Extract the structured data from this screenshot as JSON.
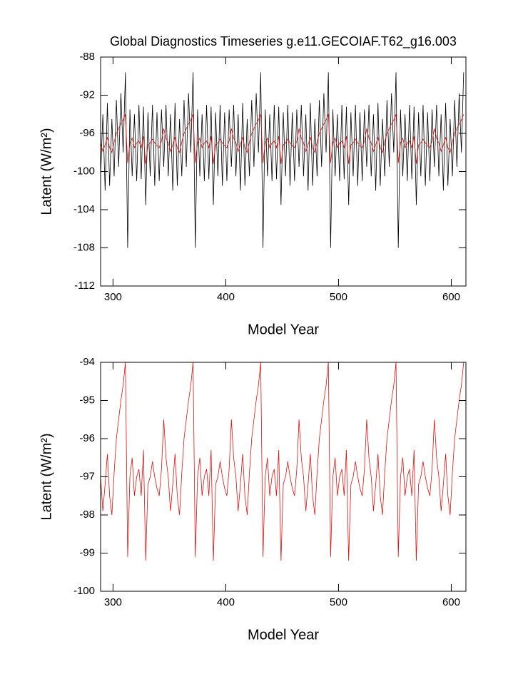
{
  "chart_data": [
    {
      "type": "line",
      "title": "Global Diagnostics Timeseries g.e11.GECOIAF.T62_g16.003",
      "xlabel": "Model Year",
      "ylabel": "Latent (W/m²)",
      "xlim": [
        289,
        613
      ],
      "xticks": [
        300,
        400,
        500,
        600
      ],
      "ylim": [
        -112,
        -88
      ],
      "yticks": [
        -112,
        -108,
        -104,
        -100,
        -96,
        -92,
        -88
      ],
      "x": [
        289,
        291,
        293,
        295,
        297,
        299,
        301,
        303,
        305,
        307,
        309,
        311,
        313,
        315,
        317,
        319,
        321,
        323,
        325,
        327,
        329,
        331,
        333,
        335,
        337,
        339,
        341,
        343,
        345,
        347,
        349,
        351,
        353,
        355,
        357,
        359,
        361,
        363,
        365,
        367,
        369,
        371,
        373,
        375,
        377,
        379,
        381,
        383,
        385,
        387,
        389,
        391,
        393,
        395,
        397,
        399,
        401,
        403,
        405,
        407,
        409,
        411,
        413,
        415,
        417,
        419,
        421,
        423,
        425,
        427,
        429,
        431,
        433,
        435,
        437,
        439,
        441,
        443,
        445,
        447,
        449,
        451,
        453,
        455,
        457,
        459,
        461,
        463,
        465,
        467,
        469,
        471,
        473,
        475,
        477,
        479,
        481,
        483,
        485,
        487,
        489,
        491,
        493,
        495,
        497,
        499,
        501,
        503,
        505,
        507,
        509,
        511,
        513,
        515,
        517,
        519,
        521,
        523,
        525,
        527,
        529,
        531,
        533,
        535,
        537,
        539,
        541,
        543,
        545,
        547,
        549,
        551,
        553,
        555,
        557,
        559,
        561,
        563,
        565,
        567,
        569,
        571,
        573,
        575,
        577,
        579,
        581,
        583,
        585,
        587,
        589,
        591,
        593,
        595,
        597,
        599,
        601,
        603,
        605,
        607,
        609,
        611
      ],
      "series": [
        {
          "color": "#000000",
          "values": [
            -100.5,
            -94,
            -102,
            -92.8,
            -101.5,
            -94.5,
            -100.5,
            -92.5,
            -99.5,
            -91.8,
            -98,
            -89.6,
            -108,
            -93.5,
            -100.5,
            -94,
            -101,
            -93,
            -100.8,
            -93.2,
            -103.5,
            -93.8,
            -100.5,
            -93,
            -101.5,
            -93.8,
            -101,
            -93.5,
            -99.5,
            -93,
            -100.5,
            -94,
            -102,
            -92.8,
            -101.5,
            -94.5,
            -100.5,
            -92.5,
            -99.5,
            -91.8,
            -98,
            -89.6,
            -108,
            -93.5,
            -100.5,
            -94,
            -101,
            -93,
            -100.8,
            -93.2,
            -103.5,
            -93.8,
            -100.5,
            -93,
            -101.5,
            -93.8,
            -101,
            -93.5,
            -99.5,
            -93,
            -100.5,
            -94,
            -102,
            -92.8,
            -101.5,
            -94.5,
            -100.5,
            -92.5,
            -99.5,
            -91.8,
            -98,
            -89.6,
            -108,
            -93.5,
            -100.5,
            -94,
            -101,
            -93,
            -100.8,
            -93.2,
            -103.5,
            -93.8,
            -100.5,
            -93,
            -101.5,
            -93.8,
            -101,
            -93.5,
            -99.5,
            -93,
            -100.5,
            -94,
            -102,
            -92.8,
            -101.5,
            -94.5,
            -100.5,
            -92.5,
            -99.5,
            -91.8,
            -98,
            -89.6,
            -108,
            -93.5,
            -100.5,
            -94,
            -101,
            -93,
            -100.8,
            -93.2,
            -103.5,
            -93.8,
            -100.5,
            -93,
            -101.5,
            -93.8,
            -101,
            -93.5,
            -99.5,
            -93,
            -100.5,
            -94,
            -102,
            -92.8,
            -101.5,
            -94.5,
            -100.5,
            -92.5,
            -99.5,
            -91.8,
            -98,
            -89.6,
            -108,
            -93.5,
            -100.5,
            -94,
            -101,
            -93,
            -100.8,
            -93.2,
            -103.5,
            -93.8,
            -100.5,
            -93,
            -101.5,
            -93.8,
            -101,
            -93.5,
            -99.5,
            -93,
            -100.5,
            -94,
            -102,
            -92.8,
            -101.5,
            -94.5,
            -100.5,
            -92.5,
            -99.5,
            -91.8,
            -98,
            -89.6
          ]
        },
        {
          "color": "#e01010",
          "values": [
            -97,
            -97.9,
            -97.2,
            -96.4,
            -97.5,
            -98,
            -96.9,
            -96,
            -95.5,
            -95,
            -94.6,
            -94,
            -99.1,
            -97,
            -96.5,
            -97.5,
            -97,
            -96.8,
            -97.5,
            -96.3,
            -99.2,
            -97.2,
            -97,
            -96.6,
            -97,
            -97.3,
            -97.5,
            -96.8,
            -95.5,
            -96.5,
            -97,
            -97.9,
            -97.2,
            -96.4,
            -97.5,
            -98,
            -96.9,
            -96,
            -95.5,
            -95,
            -94.6,
            -94,
            -99.1,
            -97,
            -96.5,
            -97.5,
            -97,
            -96.8,
            -97.5,
            -96.3,
            -99.2,
            -97.2,
            -97,
            -96.6,
            -97,
            -97.3,
            -97.5,
            -96.8,
            -95.5,
            -96.5,
            -97,
            -97.9,
            -97.2,
            -96.4,
            -97.5,
            -98,
            -96.9,
            -96,
            -95.5,
            -95,
            -94.6,
            -94,
            -99.1,
            -97,
            -96.5,
            -97.5,
            -97,
            -96.8,
            -97.5,
            -96.3,
            -99.2,
            -97.2,
            -97,
            -96.6,
            -97,
            -97.3,
            -97.5,
            -96.8,
            -95.5,
            -96.5,
            -97,
            -97.9,
            -97.2,
            -96.4,
            -97.5,
            -98,
            -96.9,
            -96,
            -95.5,
            -95,
            -94.6,
            -94,
            -99.1,
            -97,
            -96.5,
            -97.5,
            -97,
            -96.8,
            -97.5,
            -96.3,
            -99.2,
            -97.2,
            -97,
            -96.6,
            -97,
            -97.3,
            -97.5,
            -96.8,
            -95.5,
            -96.5,
            -97,
            -97.9,
            -97.2,
            -96.4,
            -97.5,
            -98,
            -96.9,
            -96,
            -95.5,
            -95,
            -94.6,
            -94,
            -99.1,
            -97,
            -96.5,
            -97.5,
            -97,
            -96.8,
            -97.5,
            -96.3,
            -99.2,
            -97.2,
            -97,
            -96.6,
            -97,
            -97.3,
            -97.5,
            -96.8,
            -95.5,
            -96.5,
            -97,
            -97.9,
            -97.2,
            -96.4,
            -97.5,
            -98,
            -96.9,
            -96,
            -95.5,
            -95,
            -94.6,
            -94
          ]
        }
      ]
    },
    {
      "type": "line",
      "xlabel": "Model Year",
      "ylabel": "Latent (W/m²)",
      "xlim": [
        289,
        613
      ],
      "xticks": [
        300,
        400,
        500,
        600
      ],
      "ylim": [
        -100,
        -94
      ],
      "yticks": [
        -100,
        -99,
        -98,
        -97,
        -96,
        -95,
        -94
      ],
      "x": [
        289,
        291,
        293,
        295,
        297,
        299,
        301,
        303,
        305,
        307,
        309,
        311,
        313,
        315,
        317,
        319,
        321,
        323,
        325,
        327,
        329,
        331,
        333,
        335,
        337,
        339,
        341,
        343,
        345,
        347,
        349,
        351,
        353,
        355,
        357,
        359,
        361,
        363,
        365,
        367,
        369,
        371,
        373,
        375,
        377,
        379,
        381,
        383,
        385,
        387,
        389,
        391,
        393,
        395,
        397,
        399,
        401,
        403,
        405,
        407,
        409,
        411,
        413,
        415,
        417,
        419,
        421,
        423,
        425,
        427,
        429,
        431,
        433,
        435,
        437,
        439,
        441,
        443,
        445,
        447,
        449,
        451,
        453,
        455,
        457,
        459,
        461,
        463,
        465,
        467,
        469,
        471,
        473,
        475,
        477,
        479,
        481,
        483,
        485,
        487,
        489,
        491,
        493,
        495,
        497,
        499,
        501,
        503,
        505,
        507,
        509,
        511,
        513,
        515,
        517,
        519,
        521,
        523,
        525,
        527,
        529,
        531,
        533,
        535,
        537,
        539,
        541,
        543,
        545,
        547,
        549,
        551,
        553,
        555,
        557,
        559,
        561,
        563,
        565,
        567,
        569,
        571,
        573,
        575,
        577,
        579,
        581,
        583,
        585,
        587,
        589,
        591,
        593,
        595,
        597,
        599,
        601,
        603,
        605,
        607,
        609,
        611
      ],
      "series": [
        {
          "color": "#e01010",
          "values": [
            -97,
            -97.9,
            -97.2,
            -96.4,
            -97.5,
            -98,
            -96.9,
            -96,
            -95.5,
            -95,
            -94.6,
            -94,
            -99.1,
            -97,
            -96.5,
            -97.5,
            -97,
            -96.8,
            -97.5,
            -96.3,
            -99.2,
            -97.2,
            -97,
            -96.6,
            -97,
            -97.3,
            -97.5,
            -96.8,
            -95.5,
            -96.5,
            -97,
            -97.9,
            -97.2,
            -96.4,
            -97.5,
            -98,
            -96.9,
            -96,
            -95.5,
            -95,
            -94.6,
            -94,
            -99.1,
            -97,
            -96.5,
            -97.5,
            -97,
            -96.8,
            -97.5,
            -96.3,
            -99.2,
            -97.2,
            -97,
            -96.6,
            -97,
            -97.3,
            -97.5,
            -96.8,
            -95.5,
            -96.5,
            -97,
            -97.9,
            -97.2,
            -96.4,
            -97.5,
            -98,
            -96.9,
            -96,
            -95.5,
            -95,
            -94.6,
            -94,
            -99.1,
            -97,
            -96.5,
            -97.5,
            -97,
            -96.8,
            -97.5,
            -96.3,
            -99.2,
            -97.2,
            -97,
            -96.6,
            -97,
            -97.3,
            -97.5,
            -96.8,
            -95.5,
            -96.5,
            -97,
            -97.9,
            -97.2,
            -96.4,
            -97.5,
            -98,
            -96.9,
            -96,
            -95.5,
            -95,
            -94.6,
            -94,
            -99.1,
            -97,
            -96.5,
            -97.5,
            -97,
            -96.8,
            -97.5,
            -96.3,
            -99.2,
            -97.2,
            -97,
            -96.6,
            -97,
            -97.3,
            -97.5,
            -96.8,
            -95.5,
            -96.5,
            -97,
            -97.9,
            -97.2,
            -96.4,
            -97.5,
            -98,
            -96.9,
            -96,
            -95.5,
            -95,
            -94.6,
            -94,
            -99.1,
            -97,
            -96.5,
            -97.5,
            -97,
            -96.8,
            -97.5,
            -96.3,
            -99.2,
            -97.2,
            -97,
            -96.6,
            -97,
            -97.3,
            -97.5,
            -96.8,
            -95.5,
            -96.5,
            -97,
            -97.9,
            -97.2,
            -96.4,
            -97.5,
            -98,
            -96.9,
            -96,
            -95.5,
            -95,
            -94.6,
            -94
          ]
        }
      ]
    }
  ]
}
